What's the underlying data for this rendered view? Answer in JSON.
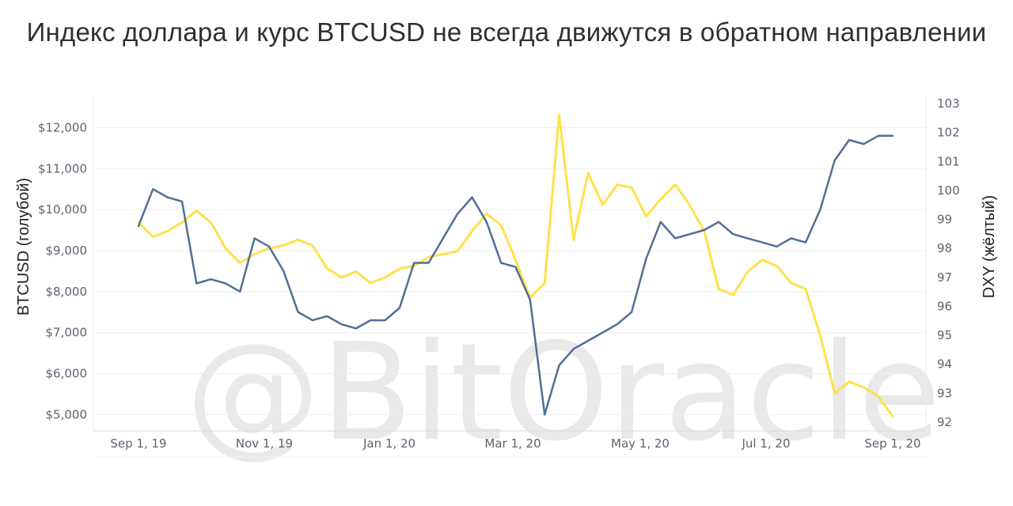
{
  "title": "Индекс доллара и курс BTCUSD не всегда движутся в обратном направлении",
  "watermark": "@BitOracle",
  "colors": {
    "btc": "#4f6f95",
    "dxy": "#ffe14a",
    "grid": "#efefef",
    "tick": "#5c6370"
  },
  "chart_data": {
    "type": "line",
    "x_dates": [
      "Sep 1, 19",
      "Sep 8",
      "Sep 15",
      "Sep 22",
      "Sep 29",
      "Oct 6",
      "Oct 13",
      "Oct 20",
      "Oct 27",
      "Nov 3",
      "Nov 10",
      "Nov 17",
      "Nov 24",
      "Dec 1",
      "Dec 8",
      "Dec 15",
      "Dec 22",
      "Dec 29",
      "Jan 5",
      "Jan 12",
      "Jan 19",
      "Jan 26",
      "Feb 2",
      "Feb 9",
      "Feb 16",
      "Feb 23",
      "Mar 1",
      "Mar 8",
      "Mar 13",
      "Mar 20",
      "Mar 27",
      "Apr 3",
      "Apr 10",
      "Apr 17",
      "Apr 24",
      "May 1",
      "May 8",
      "May 15",
      "May 22",
      "May 29",
      "Jun 5",
      "Jun 12",
      "Jun 19",
      "Jun 26",
      "Jul 3",
      "Jul 10",
      "Jul 17",
      "Jul 24",
      "Jul 31",
      "Aug 7",
      "Aug 14",
      "Aug 21",
      "Aug 28"
    ],
    "x_ticks": [
      "Sep 1, 19",
      "Nov 1, 19",
      "Jan 1, 20",
      "Mar 1, 20",
      "May 1, 20",
      "Jul 1, 20",
      "Sep 1, 20"
    ],
    "y_left": {
      "label": "BTCUSD (голубой)",
      "ticks": [
        "$5,000",
        "$6,000",
        "$7,000",
        "$8,000",
        "$9,000",
        "$10,000",
        "$11,000",
        "$12,000"
      ],
      "range": [
        4600,
        12800
      ]
    },
    "y_right": {
      "label": "DXY (жёлтый)",
      "ticks": [
        "92",
        "93",
        "94",
        "95",
        "96",
        "97",
        "98",
        "99",
        "100",
        "101",
        "102",
        "103"
      ],
      "range": [
        91.7,
        103.3
      ]
    },
    "series": [
      {
        "name": "BTCUSD",
        "axis": "left",
        "values": [
          9600,
          10500,
          10300,
          10200,
          8200,
          8300,
          8200,
          8000,
          9300,
          9100,
          8500,
          7500,
          7300,
          7400,
          7200,
          7100,
          7300,
          7300,
          7600,
          8700,
          8700,
          9300,
          9900,
          10300,
          9700,
          8700,
          8600,
          7800,
          5000,
          6200,
          6600,
          6800,
          7000,
          7200,
          7500,
          8800,
          9700,
          9300,
          9400,
          9500,
          9700,
          9400,
          9300,
          9200,
          9100,
          9300,
          9200,
          10000,
          11200,
          11700,
          11600,
          11800,
          11800
        ]
      },
      {
        "name": "DXY",
        "axis": "right",
        "values": [
          98.9,
          98.4,
          98.6,
          98.9,
          99.3,
          98.9,
          98.0,
          97.5,
          97.8,
          98.0,
          98.1,
          98.3,
          98.1,
          97.3,
          97.0,
          97.2,
          96.8,
          97.0,
          97.3,
          97.4,
          97.7,
          97.8,
          97.9,
          98.6,
          99.2,
          98.8,
          97.6,
          96.3,
          96.8,
          102.6,
          98.3,
          100.6,
          99.5,
          100.2,
          100.1,
          99.1,
          99.7,
          100.2,
          99.5,
          98.6,
          96.6,
          96.4,
          97.2,
          97.6,
          97.4,
          96.8,
          96.6,
          95.0,
          93.0,
          93.4,
          93.2,
          92.9,
          92.2
        ]
      }
    ]
  }
}
